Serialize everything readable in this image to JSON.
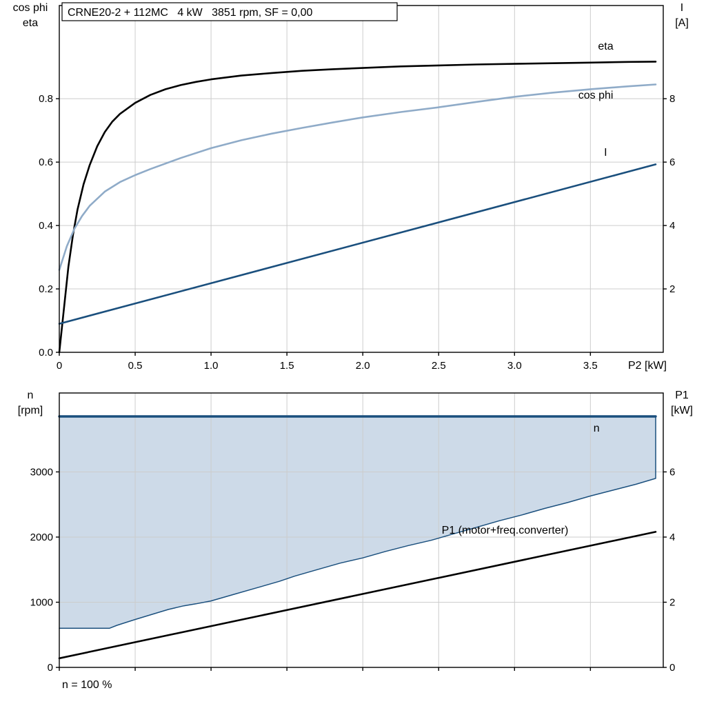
{
  "window": {
    "background": "#ffffff"
  },
  "colors": {
    "dark_blue": "#1a4f7d",
    "light_blue": "#8fabc8",
    "area_fill": "#cddae8",
    "grid": "#cccccc",
    "frame": "#000000"
  },
  "chart_data": [
    {
      "type": "line",
      "title": "CRNE20-2 + 112MC   4 kW   3851 rpm, SF = 0,00",
      "xlabel": "P2 [kW]",
      "footnote": "",
      "grid": true,
      "x_range": [
        0,
        3.98
      ],
      "x_ticks": [
        {
          "v": 0,
          "label": "0"
        },
        {
          "v": 0.5,
          "label": "0.5"
        },
        {
          "v": 1,
          "label": "1.0"
        },
        {
          "v": 1.5,
          "label": "1.5"
        },
        {
          "v": 2,
          "label": "2.0"
        },
        {
          "v": 2.5,
          "label": "2.5"
        },
        {
          "v": 3,
          "label": "3.0"
        },
        {
          "v": 3.5,
          "label": "3.5"
        }
      ],
      "left_axis": {
        "title_lines": [
          "cos phi",
          "eta"
        ],
        "range": [
          0,
          1.094
        ],
        "ticks": [
          {
            "v": 0,
            "label": "0.0"
          },
          {
            "v": 0.2,
            "label": "0.2"
          },
          {
            "v": 0.4,
            "label": "0.4"
          },
          {
            "v": 0.6,
            "label": "0.6"
          },
          {
            "v": 0.8,
            "label": "0.8"
          }
        ]
      },
      "right_axis": {
        "title_lines": [
          "I",
          "[A]"
        ],
        "range": [
          0,
          10.94
        ],
        "ticks": [
          {
            "v": 2,
            "label": "2"
          },
          {
            "v": 4,
            "label": "4"
          },
          {
            "v": 6,
            "label": "6"
          },
          {
            "v": 8,
            "label": "8"
          }
        ]
      },
      "series": [
        {
          "name": "eta",
          "color": "#000000",
          "width": 2.6,
          "axis": "left",
          "points": [
            [
              0,
              0
            ],
            [
              0.02,
              0.09
            ],
            [
              0.04,
              0.18
            ],
            [
              0.06,
              0.27
            ],
            [
              0.09,
              0.37
            ],
            [
              0.12,
              0.45
            ],
            [
              0.16,
              0.53
            ],
            [
              0.2,
              0.59
            ],
            [
              0.25,
              0.65
            ],
            [
              0.3,
              0.695
            ],
            [
              0.35,
              0.728
            ],
            [
              0.4,
              0.752
            ],
            [
              0.5,
              0.787
            ],
            [
              0.6,
              0.812
            ],
            [
              0.7,
              0.83
            ],
            [
              0.8,
              0.843
            ],
            [
              0.9,
              0.853
            ],
            [
              1,
              0.861
            ],
            [
              1.2,
              0.873
            ],
            [
              1.4,
              0.881
            ],
            [
              1.6,
              0.888
            ],
            [
              1.8,
              0.893
            ],
            [
              2,
              0.897
            ],
            [
              2.25,
              0.902
            ],
            [
              2.5,
              0.905
            ],
            [
              2.75,
              0.908
            ],
            [
              3,
              0.91
            ],
            [
              3.25,
              0.912
            ],
            [
              3.5,
              0.914
            ],
            [
              3.75,
              0.916
            ],
            [
              3.93,
              0.917
            ]
          ],
          "label": {
            "text": "eta",
            "x": 3.55,
            "y": 0.955,
            "color": "#000000"
          }
        },
        {
          "name": "cos phi",
          "color": "#8fabc8",
          "width": 2.6,
          "axis": "left",
          "points": [
            [
              0,
              0.26
            ],
            [
              0.05,
              0.335
            ],
            [
              0.1,
              0.39
            ],
            [
              0.15,
              0.43
            ],
            [
              0.2,
              0.462
            ],
            [
              0.3,
              0.507
            ],
            [
              0.4,
              0.537
            ],
            [
              0.5,
              0.559
            ],
            [
              0.6,
              0.578
            ],
            [
              0.8,
              0.613
            ],
            [
              1,
              0.644
            ],
            [
              1.2,
              0.669
            ],
            [
              1.4,
              0.69
            ],
            [
              1.6,
              0.708
            ],
            [
              1.8,
              0.725
            ],
            [
              2,
              0.741
            ],
            [
              2.25,
              0.758
            ],
            [
              2.5,
              0.773
            ],
            [
              2.75,
              0.79
            ],
            [
              3,
              0.806
            ],
            [
              3.25,
              0.819
            ],
            [
              3.5,
              0.83
            ],
            [
              3.75,
              0.839
            ],
            [
              3.93,
              0.845
            ]
          ],
          "label": {
            "text": "cos phi",
            "x": 3.42,
            "y": 0.8,
            "color": "#8fabc8"
          }
        },
        {
          "name": "I",
          "color": "#1a4f7d",
          "width": 2.6,
          "axis": "right",
          "points": [
            [
              0,
              0.9
            ],
            [
              3.93,
              5.93
            ]
          ],
          "label": {
            "text": "I",
            "x": 3.59,
            "y": 6.2,
            "color": "#1a4f7d"
          }
        }
      ]
    },
    {
      "type": "line",
      "title": "",
      "xlabel": "",
      "footnote": "n = 100 %",
      "grid": true,
      "x_range": [
        0,
        3.98
      ],
      "x_ticks": [
        {
          "v": 0,
          "label": ""
        },
        {
          "v": 0.5,
          "label": ""
        },
        {
          "v": 1,
          "label": ""
        },
        {
          "v": 1.5,
          "label": ""
        },
        {
          "v": 2,
          "label": ""
        },
        {
          "v": 2.5,
          "label": ""
        },
        {
          "v": 3,
          "label": ""
        },
        {
          "v": 3.5,
          "label": ""
        }
      ],
      "left_axis": {
        "title_lines": [
          "n",
          "[rpm]"
        ],
        "range": [
          0,
          4211
        ],
        "ticks": [
          {
            "v": 0,
            "label": "0"
          },
          {
            "v": 1000,
            "label": "1000"
          },
          {
            "v": 2000,
            "label": "2000"
          },
          {
            "v": 3000,
            "label": "3000"
          }
        ]
      },
      "right_axis": {
        "title_lines": [
          "P1",
          "[kW]"
        ],
        "range": [
          0,
          8.422
        ],
        "ticks": [
          {
            "v": 0,
            "label": "0"
          },
          {
            "v": 2,
            "label": "2"
          },
          {
            "v": 4,
            "label": "4"
          },
          {
            "v": 6,
            "label": "6"
          }
        ]
      },
      "series": [
        {
          "name": "speed range area",
          "fill": "#cddae8",
          "axis": "left",
          "points": [
            [
              0,
              3851
            ],
            [
              3.93,
              3851
            ],
            [
              3.93,
              2900
            ],
            [
              3.8,
              2810
            ],
            [
              3.65,
              2720
            ],
            [
              3.5,
              2630
            ],
            [
              3.35,
              2530
            ],
            [
              3.2,
              2440
            ],
            [
              3.05,
              2340
            ],
            [
              2.9,
              2250
            ],
            [
              2.75,
              2150
            ],
            [
              2.6,
              2050
            ],
            [
              2.45,
              1950
            ],
            [
              2.3,
              1870
            ],
            [
              2.15,
              1780
            ],
            [
              2,
              1680
            ],
            [
              1.85,
              1600
            ],
            [
              1.7,
              1500
            ],
            [
              1.55,
              1400
            ],
            [
              1.45,
              1320
            ],
            [
              1.3,
              1220
            ],
            [
              1.15,
              1120
            ],
            [
              1,
              1020
            ],
            [
              0.9,
              975
            ],
            [
              0.82,
              945
            ],
            [
              0.72,
              890
            ],
            [
              0.62,
              820
            ],
            [
              0.5,
              735
            ],
            [
              0.38,
              645
            ],
            [
              0.33,
              600
            ],
            [
              0,
              600
            ]
          ]
        },
        {
          "name": "min speed boundary",
          "color": "#1a4f7d",
          "width": 1.5,
          "axis": "left",
          "points": [
            [
              3.93,
              3851
            ],
            [
              3.93,
              2900
            ],
            [
              3.8,
              2810
            ],
            [
              3.65,
              2720
            ],
            [
              3.5,
              2630
            ],
            [
              3.35,
              2530
            ],
            [
              3.2,
              2440
            ],
            [
              3.05,
              2340
            ],
            [
              2.9,
              2250
            ],
            [
              2.75,
              2150
            ],
            [
              2.6,
              2050
            ],
            [
              2.45,
              1950
            ],
            [
              2.3,
              1870
            ],
            [
              2.15,
              1780
            ],
            [
              2,
              1680
            ],
            [
              1.85,
              1600
            ],
            [
              1.7,
              1500
            ],
            [
              1.55,
              1400
            ],
            [
              1.45,
              1320
            ],
            [
              1.3,
              1220
            ],
            [
              1.15,
              1120
            ],
            [
              1,
              1020
            ],
            [
              0.9,
              975
            ],
            [
              0.82,
              945
            ],
            [
              0.72,
              890
            ],
            [
              0.62,
              820
            ],
            [
              0.5,
              735
            ],
            [
              0.38,
              645
            ],
            [
              0.33,
              600
            ],
            [
              0,
              600
            ]
          ]
        },
        {
          "name": "n",
          "color": "#1a4f7d",
          "width": 3.4,
          "axis": "left",
          "points": [
            [
              0,
              3851
            ],
            [
              3.93,
              3851
            ]
          ],
          "label": {
            "text": "n",
            "x": 3.52,
            "y": 3620,
            "color": "#1a4f7d"
          }
        },
        {
          "name": "P1",
          "color": "#000000",
          "width": 2.6,
          "axis": "right",
          "points": [
            [
              0,
              0.28
            ],
            [
              3.93,
              4.16
            ]
          ],
          "label": {
            "text": "P1 (motor+freq.converter)",
            "x": 2.52,
            "y": 4.1,
            "color": "#000000"
          }
        }
      ]
    }
  ]
}
